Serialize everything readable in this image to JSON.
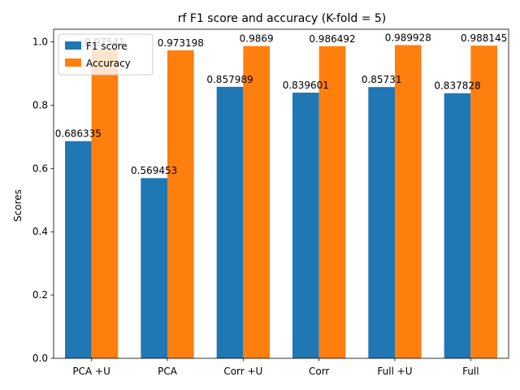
{
  "chart_data": {
    "type": "bar",
    "title": "rf F1 score and accuracy (K-fold = 5)",
    "xlabel": "",
    "ylabel": "Scores",
    "categories": [
      "PCA +U",
      "PCA",
      "Corr +U",
      "Corr",
      "Full +U",
      "Full"
    ],
    "series": [
      {
        "name": "F1 score",
        "color": "#1f77b4",
        "values": [
          0.686335,
          0.569453,
          0.857989,
          0.839601,
          0.85731,
          0.837828
        ],
        "labels": [
          "0.686335",
          "0.569453",
          "0.857989",
          "0.839601",
          "0.85731",
          "0.837828"
        ]
      },
      {
        "name": "Accuracy",
        "color": "#ff7f0e",
        "values": [
          0.97541,
          0.973198,
          0.9869,
          0.986492,
          0.989928,
          0.988145
        ],
        "labels": [
          "0.97541",
          "0.973198",
          "0.9869",
          "0.986492",
          "0.989928",
          "0.988145"
        ]
      }
    ],
    "ylim": [
      0,
      1.04
    ],
    "yticks": [
      "0.0",
      "0.2",
      "0.4",
      "0.6",
      "0.8",
      "1.0"
    ],
    "legend_position": "upper-left",
    "grid": false
  }
}
